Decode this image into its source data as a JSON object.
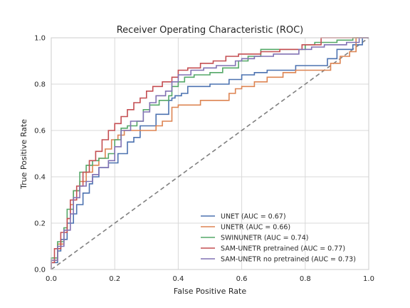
{
  "chart_data": {
    "type": "line",
    "title": "Receiver Operating Characteristic (ROC)",
    "xlabel": "False Positive Rate",
    "ylabel": "True Positive Rate",
    "xlim": [
      0.0,
      1.0
    ],
    "ylim": [
      0.0,
      1.0
    ],
    "xticks": [
      "0.0",
      "0.2",
      "0.4",
      "0.6",
      "0.8",
      "1.0"
    ],
    "yticks": [
      "0.0",
      "0.2",
      "0.4",
      "0.6",
      "0.8",
      "1.0"
    ],
    "grid": true,
    "legend_position": "lower-right",
    "chance_line": {
      "style": "dashed",
      "color": "#808080",
      "points": [
        [
          0,
          0
        ],
        [
          1,
          1
        ]
      ]
    },
    "series": [
      {
        "name": "UNET (AUC = 0.67)",
        "color": "#4c72b0",
        "points": [
          [
            0,
            0
          ],
          [
            0.02,
            0.03
          ],
          [
            0.03,
            0.08
          ],
          [
            0.05,
            0.13
          ],
          [
            0.07,
            0.2
          ],
          [
            0.08,
            0.24
          ],
          [
            0.1,
            0.28
          ],
          [
            0.12,
            0.33
          ],
          [
            0.13,
            0.37
          ],
          [
            0.15,
            0.4
          ],
          [
            0.18,
            0.44
          ],
          [
            0.21,
            0.46
          ],
          [
            0.24,
            0.5
          ],
          [
            0.26,
            0.55
          ],
          [
            0.28,
            0.57
          ],
          [
            0.33,
            0.62
          ],
          [
            0.37,
            0.67
          ],
          [
            0.38,
            0.73
          ],
          [
            0.39,
            0.74
          ],
          [
            0.41,
            0.75
          ],
          [
            0.43,
            0.76
          ],
          [
            0.5,
            0.79
          ],
          [
            0.56,
            0.8
          ],
          [
            0.6,
            0.82
          ],
          [
            0.64,
            0.84
          ],
          [
            0.68,
            0.85
          ],
          [
            0.77,
            0.86
          ],
          [
            0.78,
            0.88
          ],
          [
            0.87,
            0.88
          ],
          [
            0.9,
            0.91
          ],
          [
            0.95,
            0.95
          ],
          [
            0.98,
            0.97
          ],
          [
            1,
            1
          ]
        ]
      },
      {
        "name": "UNETR (AUC = 0.66)",
        "color": "#dd8452",
        "points": [
          [
            0,
            0
          ],
          [
            0.02,
            0.04
          ],
          [
            0.04,
            0.11
          ],
          [
            0.05,
            0.17
          ],
          [
            0.06,
            0.22
          ],
          [
            0.07,
            0.28
          ],
          [
            0.09,
            0.34
          ],
          [
            0.11,
            0.38
          ],
          [
            0.13,
            0.42
          ],
          [
            0.15,
            0.45
          ],
          [
            0.17,
            0.48
          ],
          [
            0.19,
            0.52
          ],
          [
            0.21,
            0.56
          ],
          [
            0.23,
            0.58
          ],
          [
            0.33,
            0.6
          ],
          [
            0.35,
            0.62
          ],
          [
            0.38,
            0.64
          ],
          [
            0.4,
            0.7
          ],
          [
            0.47,
            0.71
          ],
          [
            0.56,
            0.73
          ],
          [
            0.58,
            0.76
          ],
          [
            0.6,
            0.78
          ],
          [
            0.64,
            0.79
          ],
          [
            0.68,
            0.81
          ],
          [
            0.73,
            0.83
          ],
          [
            0.77,
            0.85
          ],
          [
            0.88,
            0.86
          ],
          [
            0.91,
            0.89
          ],
          [
            0.94,
            0.92
          ],
          [
            0.96,
            0.94
          ],
          [
            1,
            1
          ]
        ]
      },
      {
        "name": "SWINUNETR (AUC = 0.74)",
        "color": "#55a868",
        "points": [
          [
            0,
            0
          ],
          [
            0.02,
            0.05
          ],
          [
            0.04,
            0.12
          ],
          [
            0.05,
            0.18
          ],
          [
            0.07,
            0.26
          ],
          [
            0.09,
            0.34
          ],
          [
            0.11,
            0.42
          ],
          [
            0.13,
            0.45
          ],
          [
            0.15,
            0.47
          ],
          [
            0.18,
            0.48
          ],
          [
            0.2,
            0.5
          ],
          [
            0.22,
            0.56
          ],
          [
            0.24,
            0.61
          ],
          [
            0.27,
            0.62
          ],
          [
            0.29,
            0.64
          ],
          [
            0.31,
            0.69
          ],
          [
            0.34,
            0.71
          ],
          [
            0.37,
            0.73
          ],
          [
            0.38,
            0.75
          ],
          [
            0.4,
            0.79
          ],
          [
            0.42,
            0.81
          ],
          [
            0.45,
            0.83
          ],
          [
            0.5,
            0.84
          ],
          [
            0.54,
            0.85
          ],
          [
            0.59,
            0.87
          ],
          [
            0.62,
            0.9
          ],
          [
            0.66,
            0.92
          ],
          [
            0.8,
            0.95
          ],
          [
            0.83,
            0.97
          ],
          [
            0.9,
            0.98
          ],
          [
            0.95,
            0.99
          ],
          [
            1,
            1
          ]
        ]
      },
      {
        "name": "SAM-UNETR pretrained (AUC = 0.77)",
        "color": "#c44e52",
        "points": [
          [
            0,
            0
          ],
          [
            0.01,
            0.03
          ],
          [
            0.03,
            0.09
          ],
          [
            0.05,
            0.16
          ],
          [
            0.06,
            0.22
          ],
          [
            0.08,
            0.3
          ],
          [
            0.1,
            0.36
          ],
          [
            0.12,
            0.42
          ],
          [
            0.14,
            0.47
          ],
          [
            0.16,
            0.51
          ],
          [
            0.18,
            0.56
          ],
          [
            0.2,
            0.6
          ],
          [
            0.22,
            0.63
          ],
          [
            0.24,
            0.66
          ],
          [
            0.26,
            0.69
          ],
          [
            0.28,
            0.72
          ],
          [
            0.3,
            0.74
          ],
          [
            0.32,
            0.77
          ],
          [
            0.35,
            0.79
          ],
          [
            0.38,
            0.81
          ],
          [
            0.4,
            0.83
          ],
          [
            0.43,
            0.86
          ],
          [
            0.47,
            0.87
          ],
          [
            0.51,
            0.89
          ],
          [
            0.55,
            0.9
          ],
          [
            0.59,
            0.92
          ],
          [
            0.66,
            0.93
          ],
          [
            0.72,
            0.94
          ],
          [
            0.79,
            0.95
          ],
          [
            0.85,
            0.97
          ],
          [
            0.95,
            1
          ],
          [
            1,
            1
          ]
        ]
      },
      {
        "name": "SAM-UNETR no pretrained (AUC = 0.73)",
        "color": "#8172b3",
        "points": [
          [
            0,
            0
          ],
          [
            0.02,
            0.04
          ],
          [
            0.04,
            0.1
          ],
          [
            0.06,
            0.17
          ],
          [
            0.07,
            0.24
          ],
          [
            0.09,
            0.31
          ],
          [
            0.11,
            0.36
          ],
          [
            0.13,
            0.38
          ],
          [
            0.15,
            0.41
          ],
          [
            0.18,
            0.44
          ],
          [
            0.2,
            0.47
          ],
          [
            0.22,
            0.53
          ],
          [
            0.25,
            0.6
          ],
          [
            0.29,
            0.64
          ],
          [
            0.31,
            0.68
          ],
          [
            0.33,
            0.72
          ],
          [
            0.36,
            0.75
          ],
          [
            0.38,
            0.77
          ],
          [
            0.4,
            0.81
          ],
          [
            0.44,
            0.84
          ],
          [
            0.48,
            0.86
          ],
          [
            0.52,
            0.87
          ],
          [
            0.58,
            0.88
          ],
          [
            0.6,
            0.9
          ],
          [
            0.64,
            0.91
          ],
          [
            0.7,
            0.92
          ],
          [
            0.78,
            0.93
          ],
          [
            0.82,
            0.95
          ],
          [
            0.86,
            0.96
          ],
          [
            0.93,
            0.97
          ],
          [
            0.97,
            0.98
          ],
          [
            1,
            1
          ]
        ]
      }
    ]
  }
}
